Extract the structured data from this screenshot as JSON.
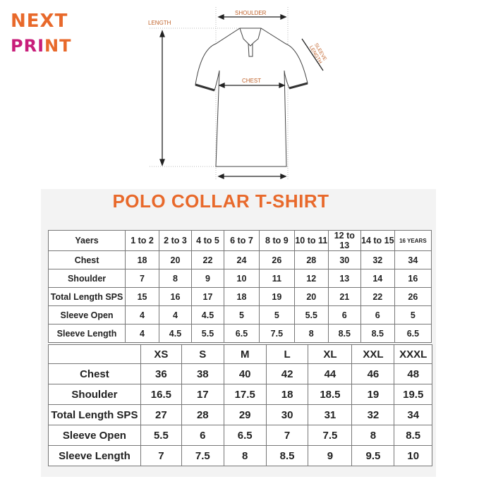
{
  "logo": {
    "line1": "NEXT",
    "line2a": "PRI",
    "line2b": "NT"
  },
  "diagram": {
    "shoulder": "SHOULDER",
    "length": "LENGTH",
    "chest": "CHEST",
    "sleeve_length": "SLEEVE LENGTH"
  },
  "title": "POLO COLLAR T-SHIRT",
  "colors": {
    "orange": "#e8692b",
    "magenta": "#c81e7a"
  },
  "kids_table": {
    "header": [
      "Yaers",
      "1 to 2",
      "2 to 3",
      "4 to 5",
      "6 to 7",
      "8 to 9",
      "10 to 11",
      "12 to 13",
      "14 to 15",
      "16 YEARS"
    ],
    "rows": [
      [
        "Chest",
        "18",
        "20",
        "22",
        "24",
        "26",
        "28",
        "30",
        "32",
        "34"
      ],
      [
        "Shoulder",
        "7",
        "8",
        "9",
        "10",
        "11",
        "12",
        "13",
        "14",
        "16"
      ],
      [
        "Total Length SPS",
        "15",
        "16",
        "17",
        "18",
        "19",
        "20",
        "21",
        "22",
        "26"
      ],
      [
        "Sleeve Open",
        "4",
        "4",
        "4.5",
        "5",
        "5",
        "5.5",
        "6",
        "6",
        "5"
      ],
      [
        "Sleeve Length",
        "4",
        "4.5",
        "5.5",
        "6.5",
        "7.5",
        "8",
        "8.5",
        "8.5",
        "6.5"
      ]
    ]
  },
  "adult_table": {
    "header": [
      "",
      "XS",
      "S",
      "M",
      "L",
      "XL",
      "XXL",
      "XXXL"
    ],
    "rows": [
      [
        "Chest",
        "36",
        "38",
        "40",
        "42",
        "44",
        "46",
        "48"
      ],
      [
        "Shoulder",
        "16.5",
        "17",
        "17.5",
        "18",
        "18.5",
        "19",
        "19.5"
      ],
      [
        "Total Length SPS",
        "27",
        "28",
        "29",
        "30",
        "31",
        "32",
        "34"
      ],
      [
        "Sleeve Open",
        "5.5",
        "6",
        "6.5",
        "7",
        "7.5",
        "8",
        "8.5"
      ],
      [
        "Sleeve Length",
        "7",
        "7.5",
        "8",
        "8.5",
        "9",
        "9.5",
        "10"
      ]
    ]
  }
}
